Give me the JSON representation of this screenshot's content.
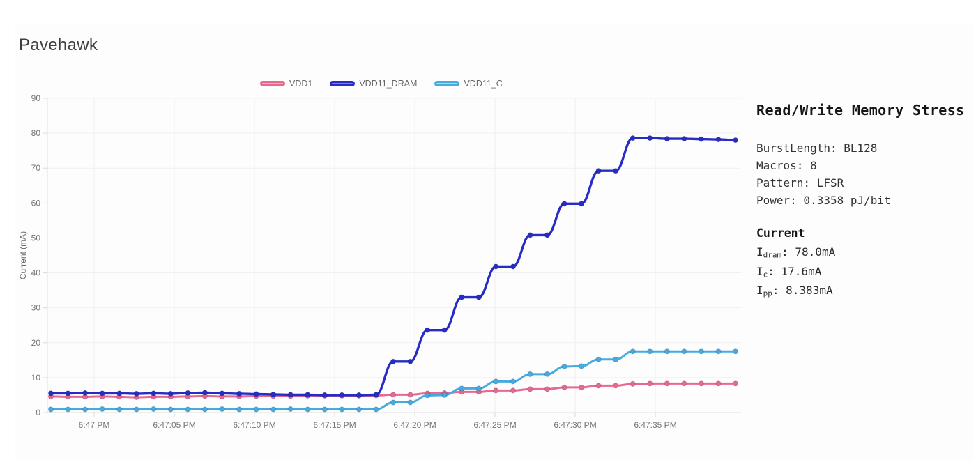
{
  "page": {
    "title": "Pavehawk"
  },
  "chart_data": {
    "type": "line",
    "title": "Pavehawk",
    "xlabel": "",
    "ylabel": "Current (mA)",
    "ylim": [
      0,
      90
    ],
    "y_ticks": [
      0,
      10,
      20,
      30,
      40,
      50,
      60,
      70,
      80,
      90
    ],
    "x_tick_labels": [
      "6:47 PM",
      "6:47:05 PM",
      "6:47:10 PM",
      "6:47:15 PM",
      "6:47:20 PM",
      "6:47:25 PM",
      "6:47:30 PM",
      "6:47:35 PM"
    ],
    "grid": true,
    "legend_position": "top",
    "point_markers": true,
    "series": [
      {
        "name": "VDD1",
        "line_color": "#e9698e",
        "fill_color": "#f6b0c4",
        "values": [
          4.6,
          4.5,
          4.5,
          4.6,
          4.5,
          4.4,
          4.5,
          4.5,
          4.6,
          4.7,
          4.6,
          4.6,
          4.7,
          4.7,
          4.7,
          4.8,
          4.8,
          4.8,
          4.8,
          4.9,
          5.1,
          5.1,
          5.5,
          5.6,
          5.9,
          5.9,
          6.3,
          6.3,
          6.7,
          6.7,
          7.2,
          7.2,
          7.7,
          7.7,
          8.2,
          8.3,
          8.3,
          8.3,
          8.3,
          8.3,
          8.3
        ]
      },
      {
        "name": "VDD11_DRAM",
        "line_color": "#272cc7",
        "fill_color": "#7b80e2",
        "values": [
          5.5,
          5.5,
          5.6,
          5.5,
          5.5,
          5.4,
          5.5,
          5.4,
          5.6,
          5.7,
          5.5,
          5.4,
          5.3,
          5.2,
          5.1,
          5.1,
          5.0,
          5.0,
          5.0,
          5.1,
          14.6,
          14.6,
          23.6,
          23.6,
          33.0,
          33.0,
          41.8,
          41.8,
          50.8,
          50.8,
          59.8,
          59.8,
          69.2,
          69.2,
          78.6,
          78.6,
          78.4,
          78.4,
          78.3,
          78.2,
          78.0
        ]
      },
      {
        "name": "VDD11_C",
        "line_color": "#46abdf",
        "fill_color": "#aad9f2",
        "values": [
          0.9,
          0.9,
          0.9,
          1.0,
          0.9,
          0.9,
          1.0,
          0.9,
          0.9,
          0.9,
          1.0,
          0.9,
          0.9,
          0.9,
          1.0,
          0.9,
          0.9,
          0.9,
          0.9,
          0.9,
          2.9,
          2.9,
          4.9,
          5.0,
          6.9,
          6.9,
          8.9,
          8.9,
          11.0,
          11.0,
          13.2,
          13.3,
          15.2,
          15.2,
          17.5,
          17.5,
          17.5,
          17.5,
          17.5,
          17.5,
          17.5
        ]
      }
    ]
  },
  "panel": {
    "title": "Read/Write Memory Stress",
    "details": [
      {
        "label": "BurstLength",
        "value": "BL128"
      },
      {
        "label": "Macros",
        "value": "8"
      },
      {
        "label": "Pattern",
        "value": "LFSR"
      },
      {
        "label": "Power",
        "value": "0.3358 pJ/bit"
      }
    ],
    "current_heading": "Current",
    "currents": [
      {
        "symbol": "I",
        "subscript": "dram",
        "value": "78.0mA"
      },
      {
        "symbol": "I",
        "subscript": "c",
        "value": "17.6mA"
      },
      {
        "symbol": "I",
        "subscript": "pp",
        "value": "8.383mA"
      }
    ]
  },
  "colors": {
    "grid": "#f0f0f0",
    "axis_border": "#dedede",
    "tick": "#d9d9d9",
    "tick_text": "#757575",
    "axis_title_text": "#696969"
  }
}
